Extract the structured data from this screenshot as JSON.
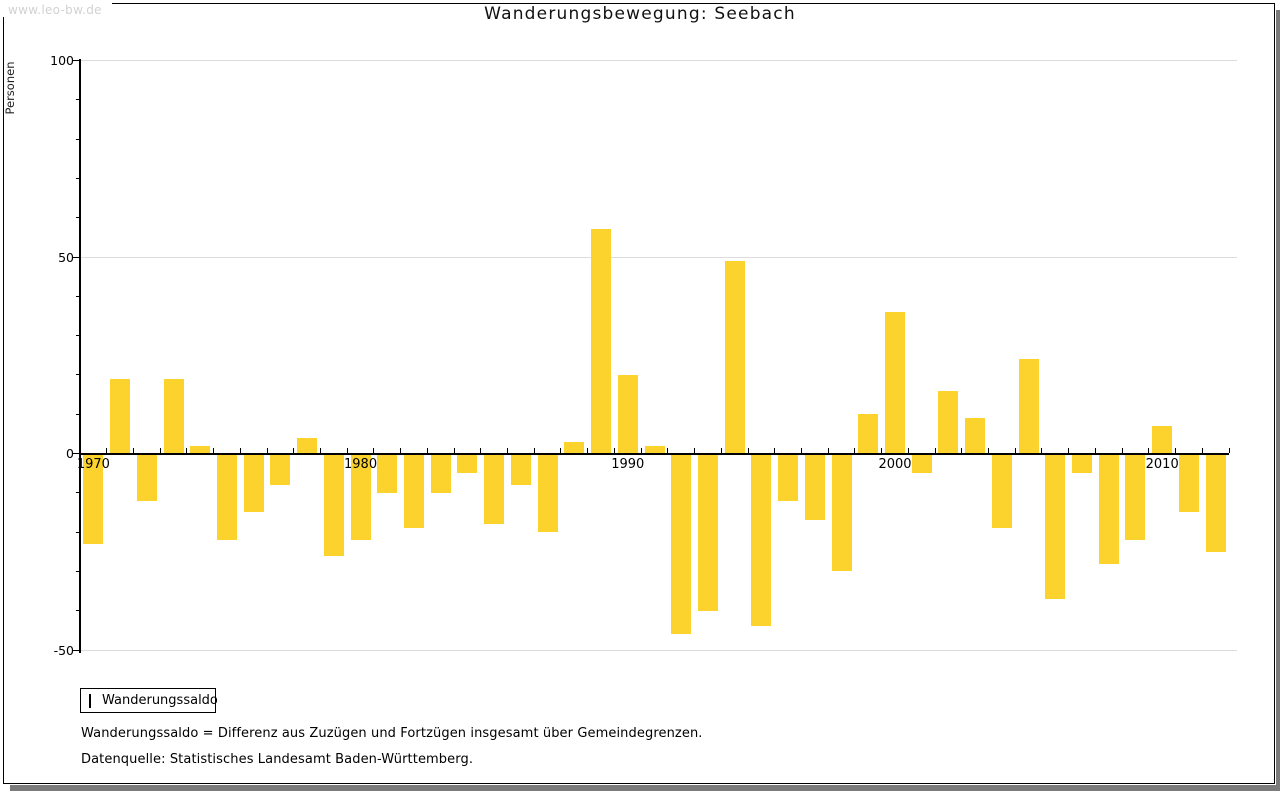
{
  "watermark": "www.leo-bw.de",
  "title": "Wanderungsbewegung: Seebach",
  "chart_data": {
    "type": "bar",
    "title": "Wanderungsbewegung: Seebach",
    "xlabel": "",
    "ylabel": "Personen",
    "ylim": [
      -50,
      100
    ],
    "yticks_major": [
      100,
      50,
      0,
      -50
    ],
    "yticks_minor": [
      90,
      80,
      70,
      60,
      40,
      30,
      20,
      10,
      -10,
      -20,
      -30,
      -40
    ],
    "gridlines_at": [
      100,
      50,
      -50
    ],
    "xticks_labeled": [
      1970,
      1980,
      1990,
      2000,
      2010
    ],
    "legend_position": "bottom-left",
    "categories": [
      1970,
      1971,
      1972,
      1973,
      1974,
      1975,
      1976,
      1977,
      1978,
      1979,
      1980,
      1981,
      1982,
      1983,
      1984,
      1985,
      1986,
      1987,
      1988,
      1989,
      1990,
      1991,
      1992,
      1993,
      1994,
      1995,
      1996,
      1997,
      1998,
      1999,
      2000,
      2001,
      2002,
      2003,
      2004,
      2005,
      2006,
      2007,
      2008,
      2009,
      2010,
      2011,
      2012
    ],
    "series": [
      {
        "name": "Wanderungssaldo",
        "values": [
          -23,
          19,
          -12,
          19,
          2,
          -22,
          -15,
          -8,
          4,
          -26,
          -22,
          -10,
          -19,
          -10,
          -5,
          -18,
          -8,
          -20,
          3,
          57,
          20,
          2,
          -46,
          -40,
          49,
          -44,
          -12,
          -17,
          -30,
          10,
          36,
          -5,
          16,
          9,
          -19,
          24,
          -37,
          -5,
          -28,
          -22,
          7,
          -15,
          -25
        ]
      }
    ]
  },
  "legend": {
    "label": "Wanderungssaldo"
  },
  "footnotes": {
    "definition": "Wanderungssaldo = Differenz aus Zuzügen und Fortzügen insgesamt über Gemeindegrenzen.",
    "source": "Datenquelle: Statistisches Landesamt Baden-Württemberg."
  },
  "colors": {
    "bar": "#FCD32D",
    "grid": "#dcdcdc",
    "axis": "#000000",
    "watermark_text": "#d2d2d2",
    "frame_shadow": "#7b7b7b"
  }
}
